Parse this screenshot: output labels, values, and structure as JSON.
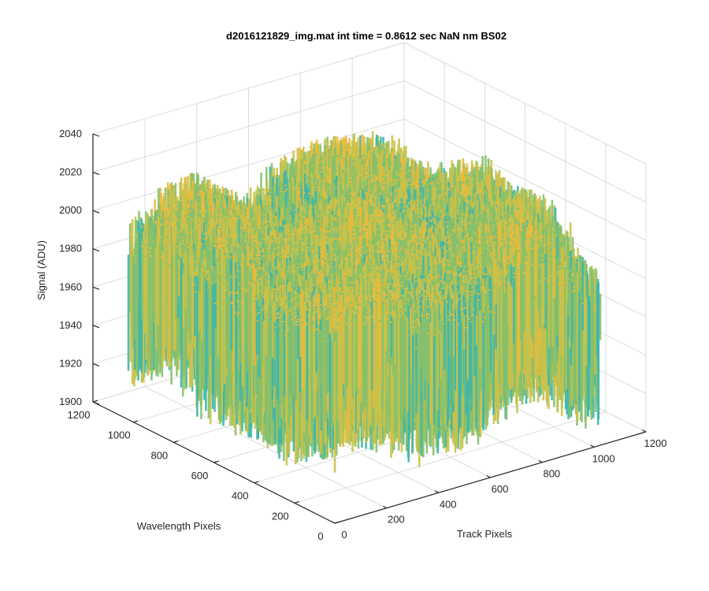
{
  "chart_data": {
    "type": "surface",
    "title": "d2016121829_img.mat int time = 0.8612 sec  NaN nm BS02",
    "xlabel": "Track Pixels",
    "ylabel": "Wavelength Pixels",
    "zlabel": "Signal (ADU)",
    "x_ticks": [
      0,
      200,
      400,
      600,
      800,
      1000,
      1200
    ],
    "y_ticks": [
      0,
      200,
      400,
      600,
      800,
      1000,
      1200
    ],
    "z_ticks": [
      1900,
      1920,
      1940,
      1960,
      1980,
      2000,
      2020,
      2040
    ],
    "xlim": [
      0,
      1200
    ],
    "ylim": [
      0,
      1200
    ],
    "zlim": [
      1900,
      2040
    ],
    "grid": true,
    "colormap": [
      "#1f77b4",
      "#17a2c8",
      "#3fb6a8",
      "#86c06c",
      "#c9c24a",
      "#f0b93a"
    ],
    "surface_extent": {
      "x": [
        0,
        1024
      ],
      "y": [
        0,
        1024
      ]
    },
    "signal_mean": 1985,
    "signal_range": [
      1910,
      2040
    ]
  }
}
